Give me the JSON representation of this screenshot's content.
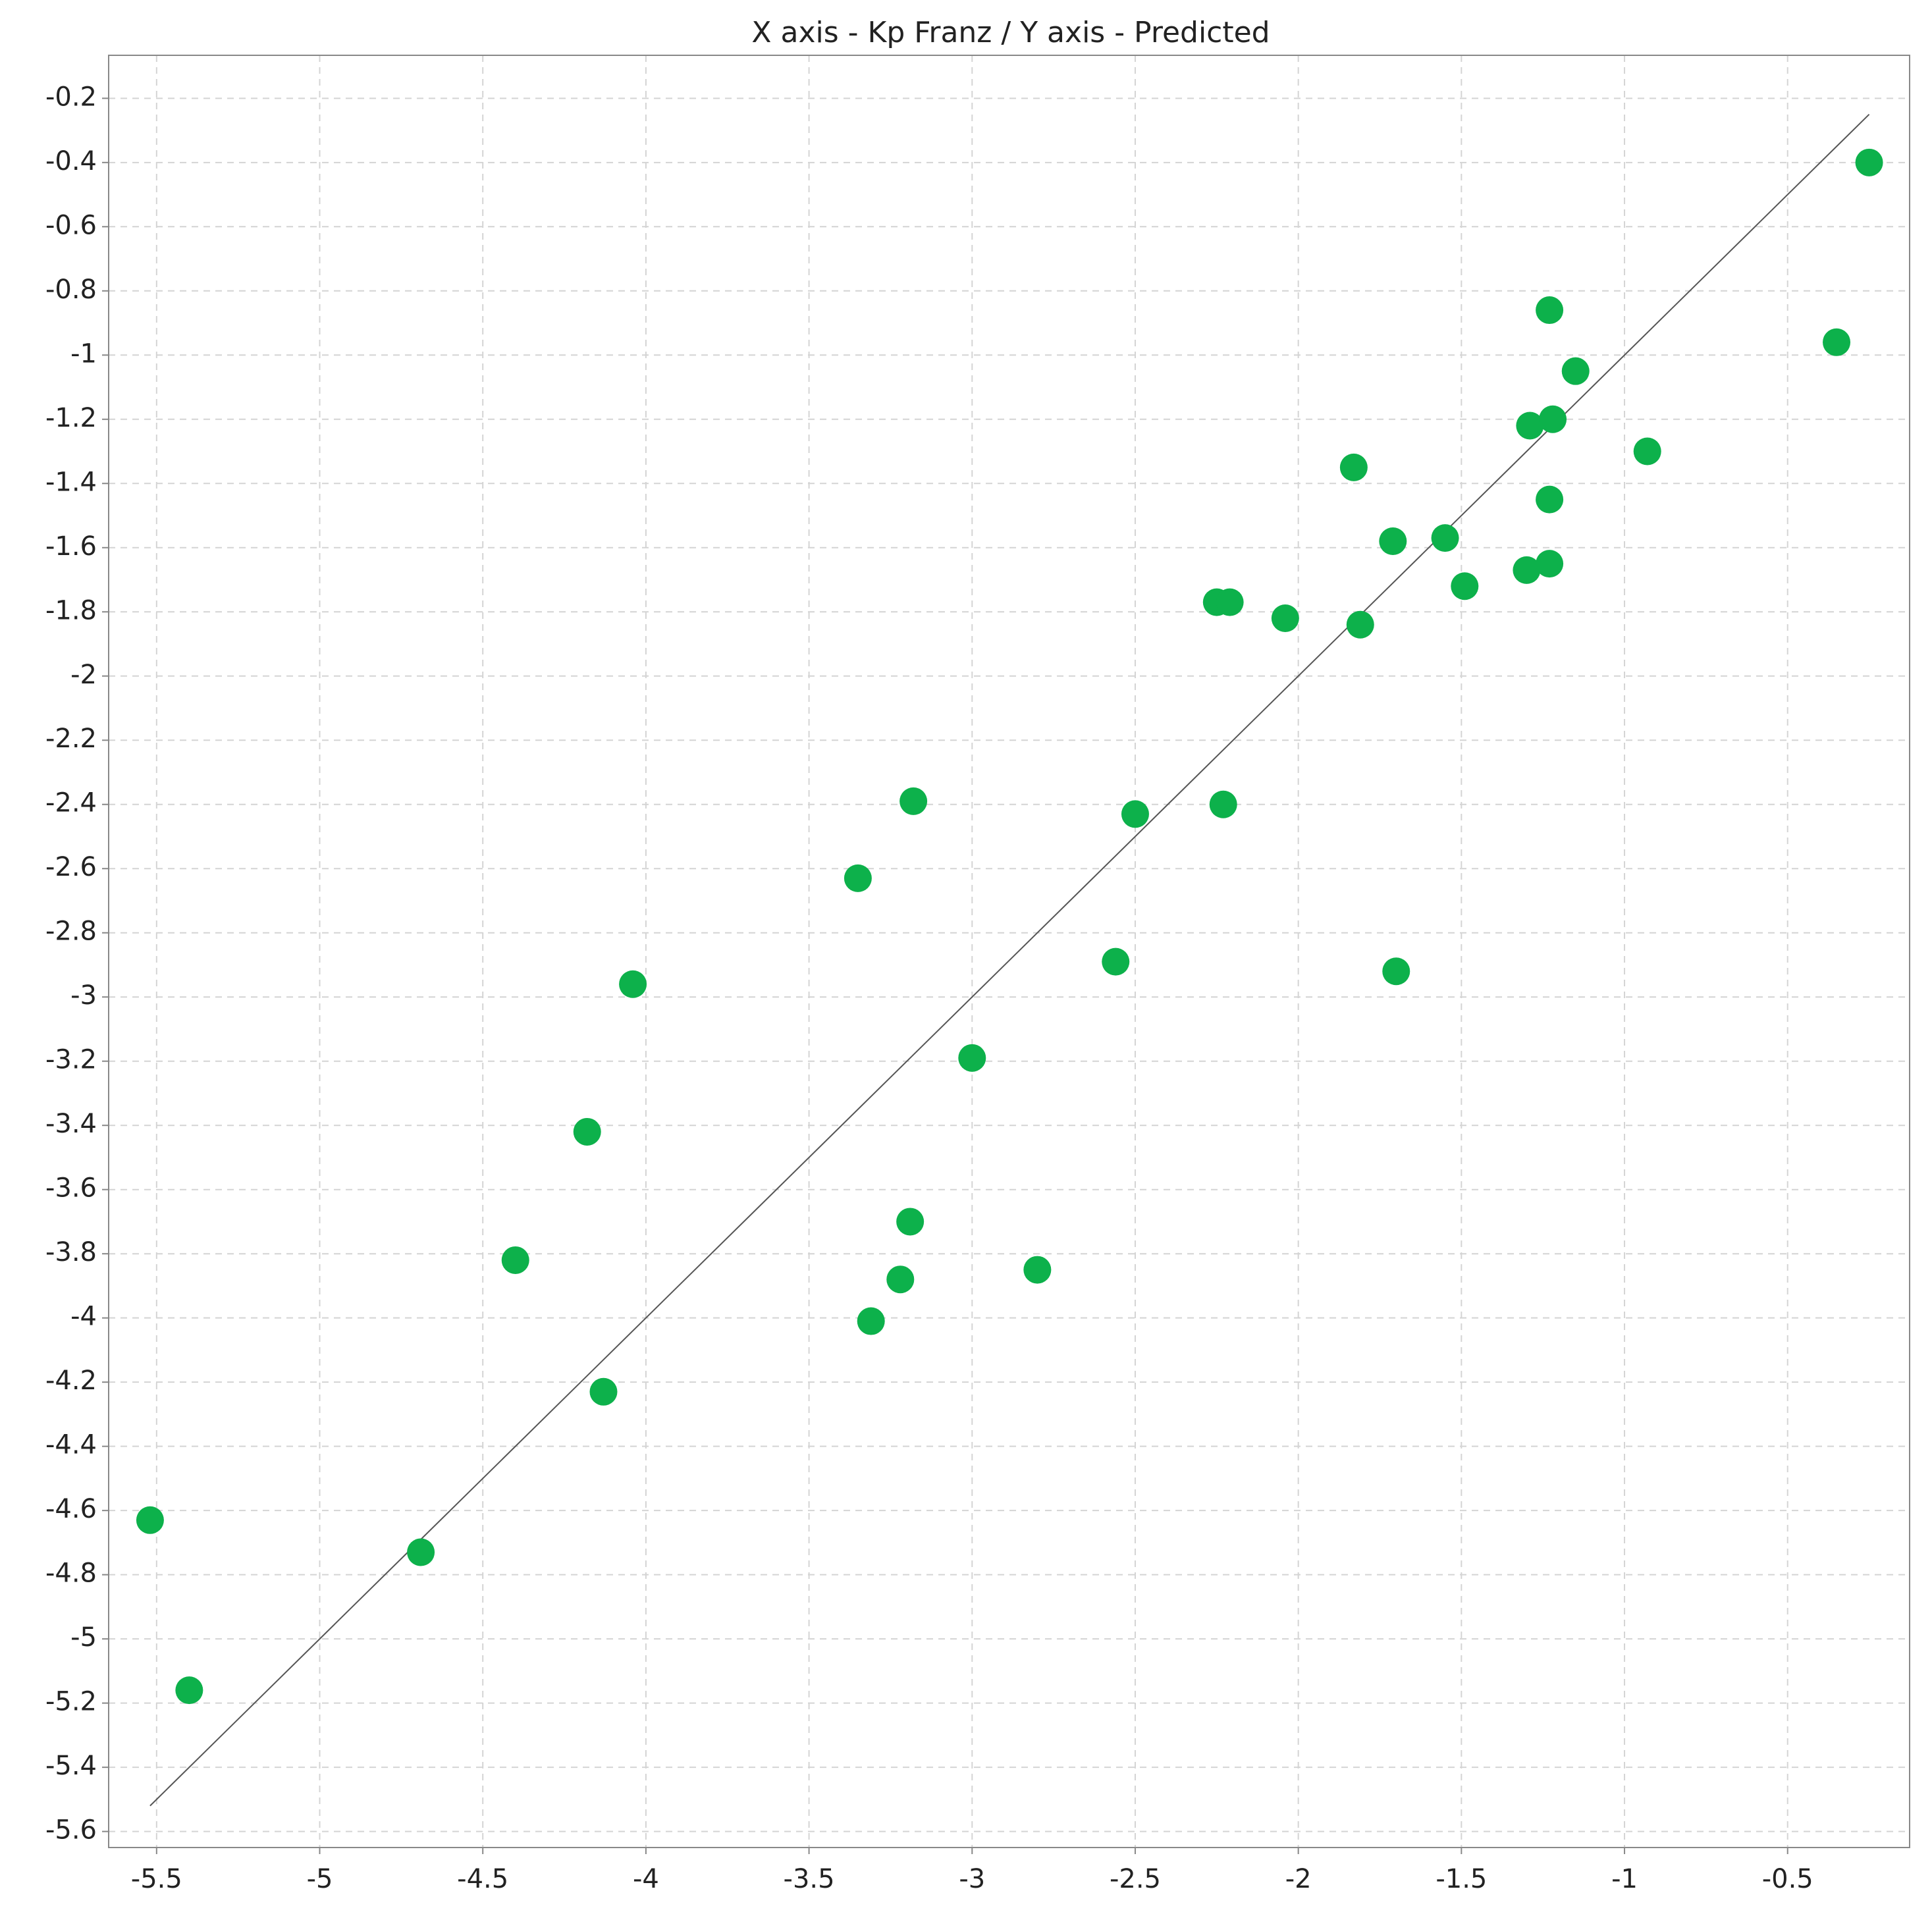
{
  "chart_data": {
    "type": "scatter",
    "title": "X axis - Kp Franz / Y axis - Predicted",
    "xlim": [
      -5.647,
      -0.126
    ],
    "ylim": [
      -5.65,
      -0.066
    ],
    "xticks": [
      -5.5,
      -5,
      -4.5,
      -4,
      -3.5,
      -3,
      -2.5,
      -2,
      -1.5,
      -1,
      -0.5
    ],
    "yticks": [
      -0.2,
      -0.4,
      -0.6,
      -0.8,
      -1,
      -1.2,
      -1.4,
      -1.6,
      -1.8,
      -2,
      -2.2,
      -2.4,
      -2.6,
      -2.8,
      -3,
      -3.2,
      -3.4,
      -3.6,
      -3.8,
      -4,
      -4.2,
      -4.4,
      -4.6,
      -4.8,
      -5,
      -5.2,
      -5.4,
      -5.6
    ],
    "grid": true,
    "series": [
      {
        "color": "#0db14b",
        "x": [
          -0.25,
          -0.35,
          -1.23,
          -1.15,
          -1.29,
          -1.22,
          -0.93,
          -1.83,
          -1.23,
          -1.71,
          -1.55,
          -1.3,
          -1.23,
          -1.49,
          -2.25,
          -2.21,
          -2.04,
          -1.81,
          -3.18,
          -2.23,
          -2.5,
          -3.35,
          -2.56,
          -1.7,
          -4.04,
          -3.0,
          -4.18,
          -3.19,
          -4.4,
          -2.8,
          -3.22,
          -3.31,
          -4.13,
          -5.52,
          -4.69,
          -5.4
        ],
        "values": [
          -0.4,
          -0.96,
          -0.86,
          -1.05,
          -1.22,
          -1.2,
          -1.3,
          -1.35,
          -1.45,
          -1.58,
          -1.57,
          -1.67,
          -1.65,
          -1.72,
          -1.77,
          -1.77,
          -1.82,
          -1.84,
          -2.39,
          -2.4,
          -2.43,
          -2.63,
          -2.89,
          -2.92,
          -2.96,
          -3.19,
          -3.42,
          -3.7,
          -3.82,
          -3.85,
          -3.88,
          -4.01,
          -4.23,
          -4.63,
          -4.73,
          -5.16
        ]
      }
    ],
    "reference_line": {
      "color": "#555555",
      "x": [
        -5.52,
        -0.25
      ],
      "values": [
        -5.52,
        -0.25
      ]
    }
  }
}
